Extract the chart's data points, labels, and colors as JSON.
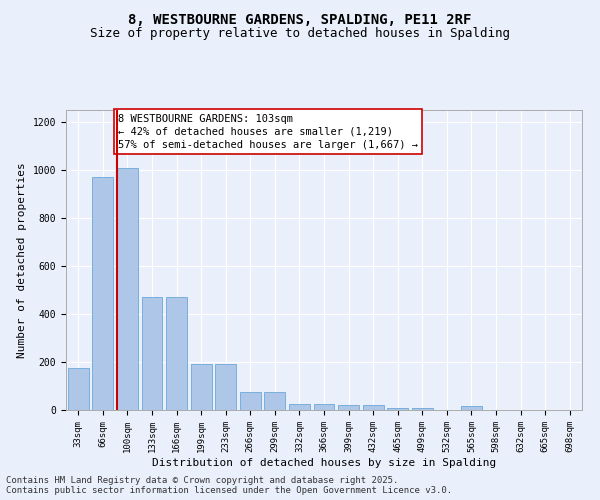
{
  "title1": "8, WESTBOURNE GARDENS, SPALDING, PE11 2RF",
  "title2": "Size of property relative to detached houses in Spalding",
  "xlabel": "Distribution of detached houses by size in Spalding",
  "ylabel": "Number of detached properties",
  "bar_values": [
    175,
    970,
    1010,
    470,
    470,
    190,
    190,
    75,
    75,
    25,
    25,
    20,
    20,
    10,
    10,
    0,
    15,
    0,
    0,
    0,
    0
  ],
  "categories": [
    "33sqm",
    "66sqm",
    "100sqm",
    "133sqm",
    "166sqm",
    "199sqm",
    "233sqm",
    "266sqm",
    "299sqm",
    "332sqm",
    "366sqm",
    "399sqm",
    "432sqm",
    "465sqm",
    "499sqm",
    "532sqm",
    "565sqm",
    "598sqm",
    "632sqm",
    "665sqm",
    "698sqm"
  ],
  "bar_color": "#aec6e8",
  "bar_edgecolor": "#5a9fd4",
  "vline_color": "#cc0000",
  "annotation_text_line1": "8 WESTBOURNE GARDENS: 103sqm",
  "annotation_text_line2": "← 42% of detached houses are smaller (1,219)",
  "annotation_text_line3": "57% of semi-detached houses are larger (1,667) →",
  "annotation_box_color": "#cc0000",
  "annotation_fill": "#ffffff",
  "ylim": [
    0,
    1250
  ],
  "yticks": [
    0,
    200,
    400,
    600,
    800,
    1000,
    1200
  ],
  "background_color": "#eaf0fb",
  "grid_color": "#ffffff",
  "footer_line1": "Contains HM Land Registry data © Crown copyright and database right 2025.",
  "footer_line2": "Contains public sector information licensed under the Open Government Licence v3.0.",
  "title_fontsize": 10,
  "subtitle_fontsize": 9,
  "axis_label_fontsize": 8,
  "tick_fontsize": 6.5,
  "annotation_fontsize": 7.5,
  "footer_fontsize": 6.5
}
